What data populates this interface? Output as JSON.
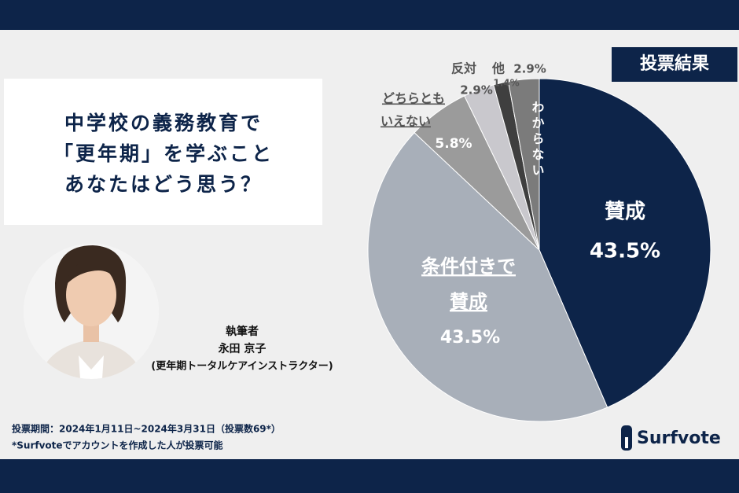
{
  "header": {
    "title_lines": [
      "中学校の義務教育で",
      "「更年期」を学ぶこと",
      "あなたはどう思う？"
    ],
    "badge": "投票結果"
  },
  "author": {
    "role": "執筆者",
    "name": "永田 京子",
    "title": "(更年期トータルケアインストラクター)"
  },
  "footer": {
    "period": "投票期間：2024年1月11日~2024年3月31日（投票数69*）",
    "note": "*Surfvoteでアカウントを作成した人が投票可能",
    "logo": "Surfvote"
  },
  "chart_data": {
    "type": "pie",
    "categories": [
      [
        "賛成"
      ],
      [
        "条件付きで",
        "賛成"
      ],
      [
        "どちらとも",
        "いえない"
      ],
      [
        "反対"
      ],
      [
        "他"
      ],
      [
        "わからない"
      ]
    ],
    "values": [
      43.5,
      43.5,
      5.8,
      2.9,
      1.4,
      2.9
    ],
    "value_labels": [
      "43.5%",
      "43.5%",
      "5.8%",
      "2.9%",
      "1.4%",
      "2.9%"
    ],
    "colors": [
      "#0d2449",
      "#a8afb9",
      "#9b9b9b",
      "#c9c8cd",
      "#3f3f3f",
      "#7b7b7b"
    ]
  }
}
